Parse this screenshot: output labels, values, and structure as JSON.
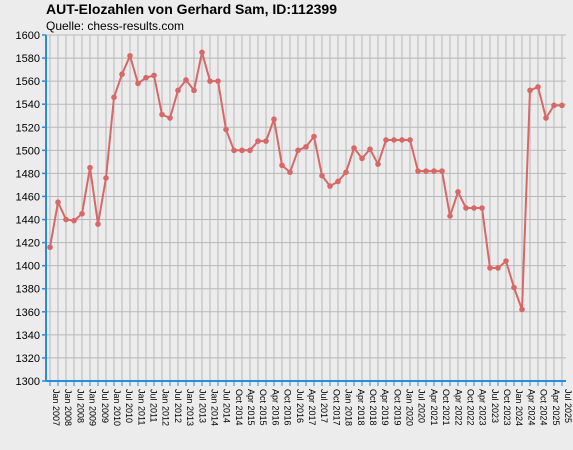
{
  "header": {
    "title": "AUT-Elozahlen von Gerhard Sam, ID:112399",
    "subtitle": "Quelle: chess-results.com"
  },
  "colors": {
    "line": "#d86868",
    "axis": "#2a8cdc",
    "grid": "#b8b8b8",
    "plot_background": "#ececec"
  },
  "chart_data": {
    "type": "line",
    "title": "AUT-Elozahlen von Gerhard Sam, ID:112399",
    "subtitle": "Quelle: chess-results.com",
    "xlabel": "",
    "ylabel": "",
    "ylim": [
      1300,
      1600
    ],
    "yticks": [
      1300,
      1320,
      1340,
      1360,
      1380,
      1400,
      1420,
      1440,
      1460,
      1480,
      1500,
      1520,
      1540,
      1560,
      1580,
      1600
    ],
    "grid": true,
    "x_tick_labels": [
      "Jan 2007",
      "Jan 2008",
      "Jul 2008",
      "Jan 2009",
      "Jul 2009",
      "Jan 2010",
      "Jul 2010",
      "Jan 2011",
      "Jul 2011",
      "Jan 2012",
      "Jul 2012",
      "Jan 2013",
      "Jul 2013",
      "Jan 2014",
      "Jul 2014",
      "Oct 2014",
      "Apr 2015",
      "Oct 2015",
      "Apr 2016",
      "Oct 2016",
      "Jul 2016",
      "Apr 2017",
      "Jul 2017",
      "Oct 2017",
      "Jan 2018",
      "Apr 2018",
      "Oct 2018",
      "Apr 2019",
      "Oct 2019",
      "Jan 2020",
      "Jul 2020",
      "Apr 2021",
      "Oct 2021",
      "Apr 2022",
      "Oct 2022",
      "Apr 2023",
      "Jul 2023",
      "Oct 2023",
      "Jan 2024",
      "Apr 2024",
      "Oct 2024",
      "Apr 2025",
      "Jul 2025"
    ],
    "series": [
      {
        "values": [
          1416,
          1455,
          1440,
          1439,
          1445,
          1485,
          1436,
          1476,
          1546,
          1566,
          1582,
          1558,
          1563,
          1565,
          1531,
          1528,
          1552,
          1561,
          1552,
          1585,
          1560,
          1560,
          1518,
          1500,
          1500,
          1500,
          1508,
          1508,
          1527,
          1487,
          1481,
          1500,
          1503,
          1512,
          1478,
          1469,
          1473,
          1481,
          1502,
          1493,
          1501,
          1488,
          1509,
          1509,
          1509,
          1509,
          1482,
          1482,
          1482,
          1482,
          1443,
          1464,
          1450,
          1450,
          1450,
          1398,
          1398,
          1404,
          1381,
          1362,
          1552,
          1555,
          1528,
          1539,
          1539
        ]
      }
    ]
  }
}
